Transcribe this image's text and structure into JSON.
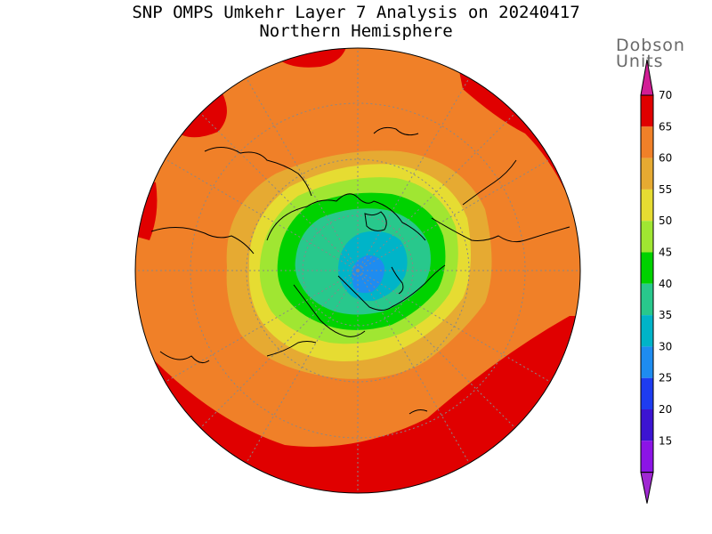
{
  "title": "SNP OMPS Umkehr Layer 7 Analysis on 20240417",
  "subtitle": "Northern Hemisphere",
  "colorbar": {
    "unit_line1": "Dobson",
    "unit_line2": "Units",
    "ticks": [
      "70",
      "65",
      "60",
      "55",
      "50",
      "45",
      "40",
      "35",
      "30",
      "25",
      "20",
      "15"
    ],
    "colors": [
      "#e00000",
      "#f08028",
      "#e6aa32",
      "#e6dc32",
      "#a0e632",
      "#00d200",
      "#28c88c",
      "#00b4c8",
      "#1e8cf0",
      "#1e3cf0",
      "#3c14d2",
      "#8c14e6"
    ],
    "top_arrow_color": "#d21e96",
    "bottom_arrow_color": "#a028d2"
  },
  "map": {
    "projection": "north-polar-stereographic",
    "region": "Northern Hemisphere",
    "field": "ozone layer 7 (Dobson Units)",
    "min_value_region": "Arctic Ocean (~30-35 DU)",
    "max_value_region": "low latitudes (>65 DU)"
  }
}
